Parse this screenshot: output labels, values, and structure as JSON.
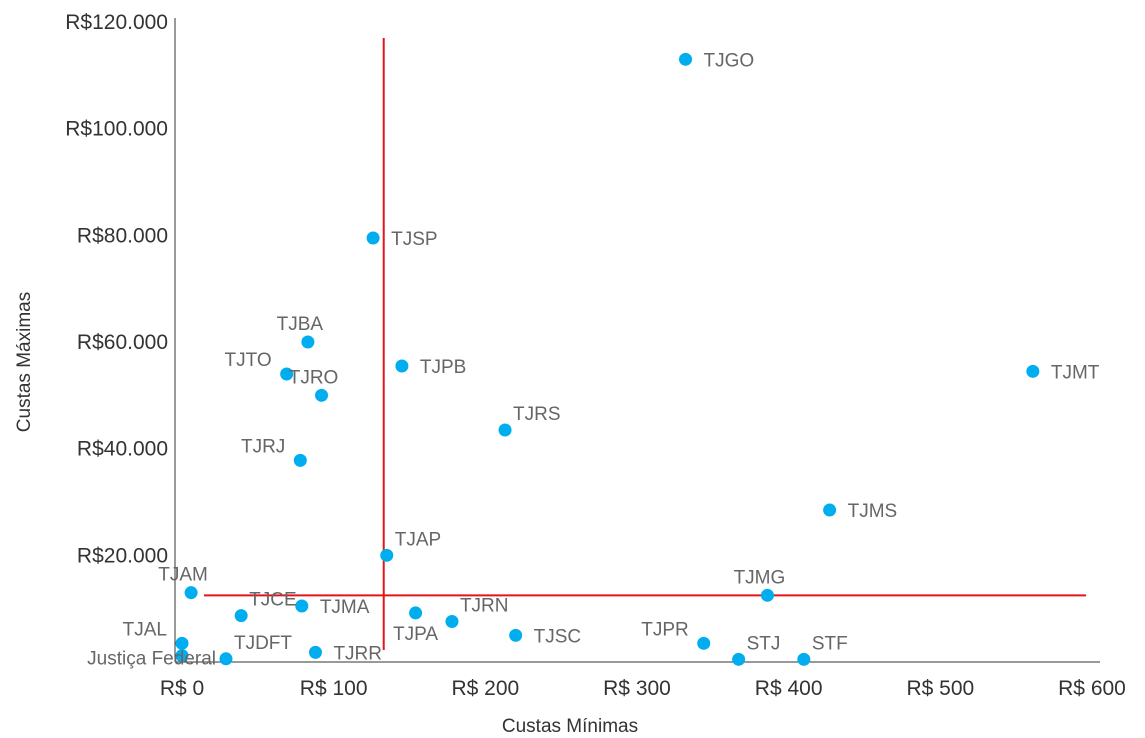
{
  "chart_data": {
    "type": "scatter",
    "title": "",
    "xlabel": "Custas Mínimas",
    "ylabel": "Custas Máximas",
    "xlim": [
      0,
      600
    ],
    "ylim": [
      0,
      120000
    ],
    "x_ticks": [
      0,
      100,
      200,
      300,
      400,
      500,
      600
    ],
    "x_tick_labels": [
      "R$ 0",
      "R$ 100",
      "R$ 200",
      "R$ 300",
      "R$ 400",
      "R$ 500",
      "R$ 600"
    ],
    "y_ticks": [
      20000,
      40000,
      60000,
      80000,
      100000,
      120000
    ],
    "y_tick_labels": [
      "R$20.000",
      "R$40.000",
      "R$60.000",
      "R$80.000",
      "R$100.000",
      "R$120.000"
    ],
    "grid": false,
    "point_color": "#00AEEF",
    "reference_line_color": "#E3141B",
    "reference_lines": {
      "x": 133,
      "y": 12500
    },
    "points": [
      {
        "label": "TJGO",
        "x": 332,
        "y": 113000,
        "label_pos": "right"
      },
      {
        "label": "TJSP",
        "x": 126,
        "y": 79500,
        "label_pos": "right"
      },
      {
        "label": "TJBA",
        "x": 83,
        "y": 60000,
        "label_pos": "above"
      },
      {
        "label": "TJTO",
        "x": 69,
        "y": 54000,
        "label_pos": "left-up"
      },
      {
        "label": "TJPB",
        "x": 145,
        "y": 55500,
        "label_pos": "right"
      },
      {
        "label": "TJRO",
        "x": 92,
        "y": 50000,
        "label_pos": "above"
      },
      {
        "label": "TJMT",
        "x": 561,
        "y": 54500,
        "label_pos": "right"
      },
      {
        "label": "TJRS",
        "x": 213,
        "y": 43500,
        "label_pos": "right-up"
      },
      {
        "label": "TJRJ",
        "x": 78,
        "y": 37800,
        "label_pos": "left-up"
      },
      {
        "label": "TJMS",
        "x": 427,
        "y": 28500,
        "label_pos": "right"
      },
      {
        "label": "TJAP",
        "x": 135,
        "y": 20000,
        "label_pos": "right-up"
      },
      {
        "label": "TJAM",
        "x": 6,
        "y": 13000,
        "label_pos": "above"
      },
      {
        "label": "TJMG",
        "x": 386,
        "y": 12500,
        "label_pos": "above"
      },
      {
        "label": "TJCE",
        "x": 39,
        "y": 8700,
        "label_pos": "right-up"
      },
      {
        "label": "TJMA",
        "x": 79,
        "y": 10500,
        "label_pos": "right"
      },
      {
        "label": "TJRN",
        "x": 178,
        "y": 7600,
        "label_pos": "right-up"
      },
      {
        "label": "TJPA",
        "x": 154,
        "y": 9200,
        "label_pos": "below-left"
      },
      {
        "label": "TJSC",
        "x": 220,
        "y": 5000,
        "label_pos": "right"
      },
      {
        "label": "TJAL",
        "x": 0,
        "y": 3500,
        "label_pos": "left-up"
      },
      {
        "label": "Justiça Federal",
        "x": 0,
        "y": 1200,
        "label_pos": "left"
      },
      {
        "label": "TJDFT",
        "x": 29,
        "y": 600,
        "label_pos": "right-up"
      },
      {
        "label": "TJRR",
        "x": 88,
        "y": 1800,
        "label_pos": "right"
      },
      {
        "label": "TJPR",
        "x": 344,
        "y": 3500,
        "label_pos": "left-up"
      },
      {
        "label": "STJ",
        "x": 367,
        "y": 500,
        "label_pos": "right-up"
      },
      {
        "label": "STF",
        "x": 410,
        "y": 500,
        "label_pos": "right-up"
      }
    ]
  }
}
